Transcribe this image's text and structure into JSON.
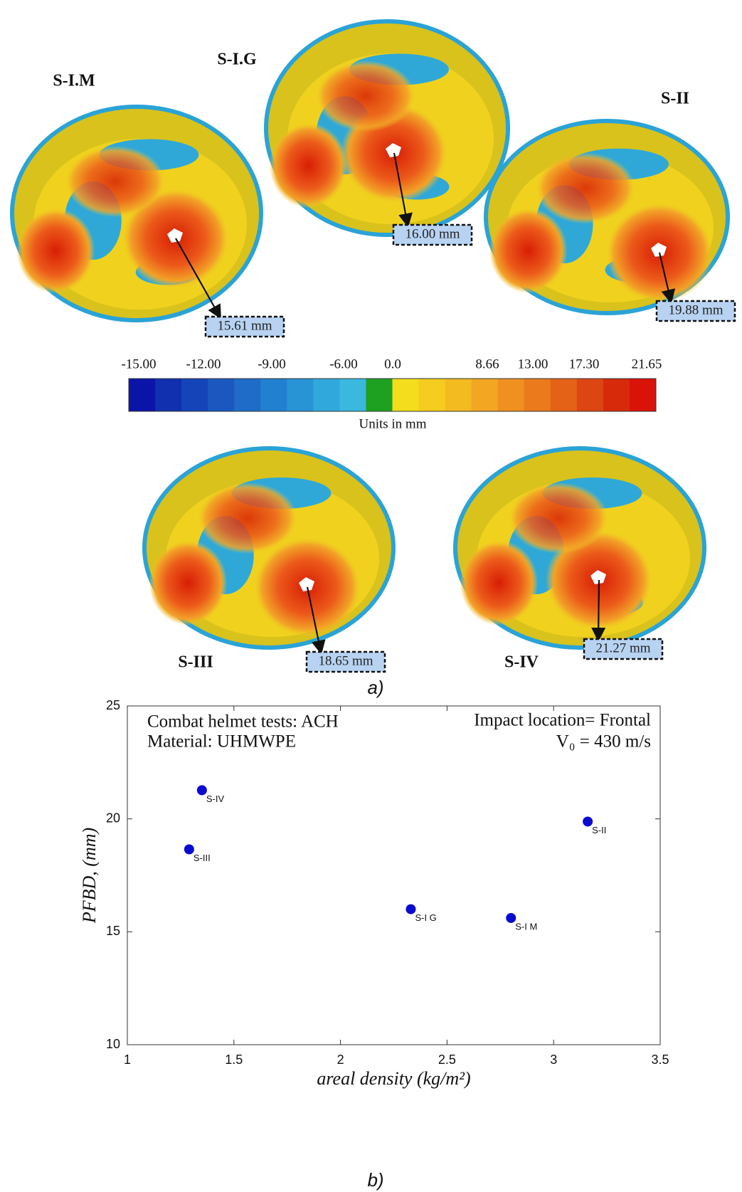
{
  "figure": {
    "helmets": [
      {
        "label": "S-I.M",
        "value_label": "15.61 mm"
      },
      {
        "label": "S-I.G",
        "value_label": "16.00 mm"
      },
      {
        "label": "S-II",
        "value_label": "19.88 mm"
      },
      {
        "label": "S-III",
        "value_label": "18.65 mm"
      },
      {
        "label": "S-IV",
        "value_label": "21.27 mm"
      }
    ],
    "colorbar": {
      "labels": [
        "-15.00",
        "-12.00",
        "-9.00",
        "-6.00",
        "0.0",
        "8.66",
        "13.00",
        "17.30",
        "21.65"
      ],
      "title": "Units in mm"
    },
    "caption_a": "a)",
    "caption_b": "b)"
  },
  "chart_data": {
    "type": "scatter",
    "annotations": [
      "Combat helmet tests: ACH",
      "Material: UHMWPE",
      "Impact location= Frontal",
      "V₀ = 430 m/s"
    ],
    "x_label": "areal density (kg/m²)",
    "y_label": "PFBD, (mm)",
    "color": "#0a0ad0",
    "point_labels": [
      "S-IV",
      "S-III",
      "S-II",
      "S-I G",
      "S-I M"
    ],
    "x": [
      1.35,
      1.29,
      3.16,
      2.33,
      2.8
    ],
    "values": [
      21.27,
      18.65,
      19.88,
      16.0,
      15.61
    ],
    "xlim": [
      1,
      3.5
    ],
    "ylim": [
      10,
      25
    ],
    "xticks": [
      1,
      1.5,
      2,
      2.5,
      3,
      3.5
    ],
    "yticks": [
      10,
      15,
      20,
      25
    ]
  }
}
